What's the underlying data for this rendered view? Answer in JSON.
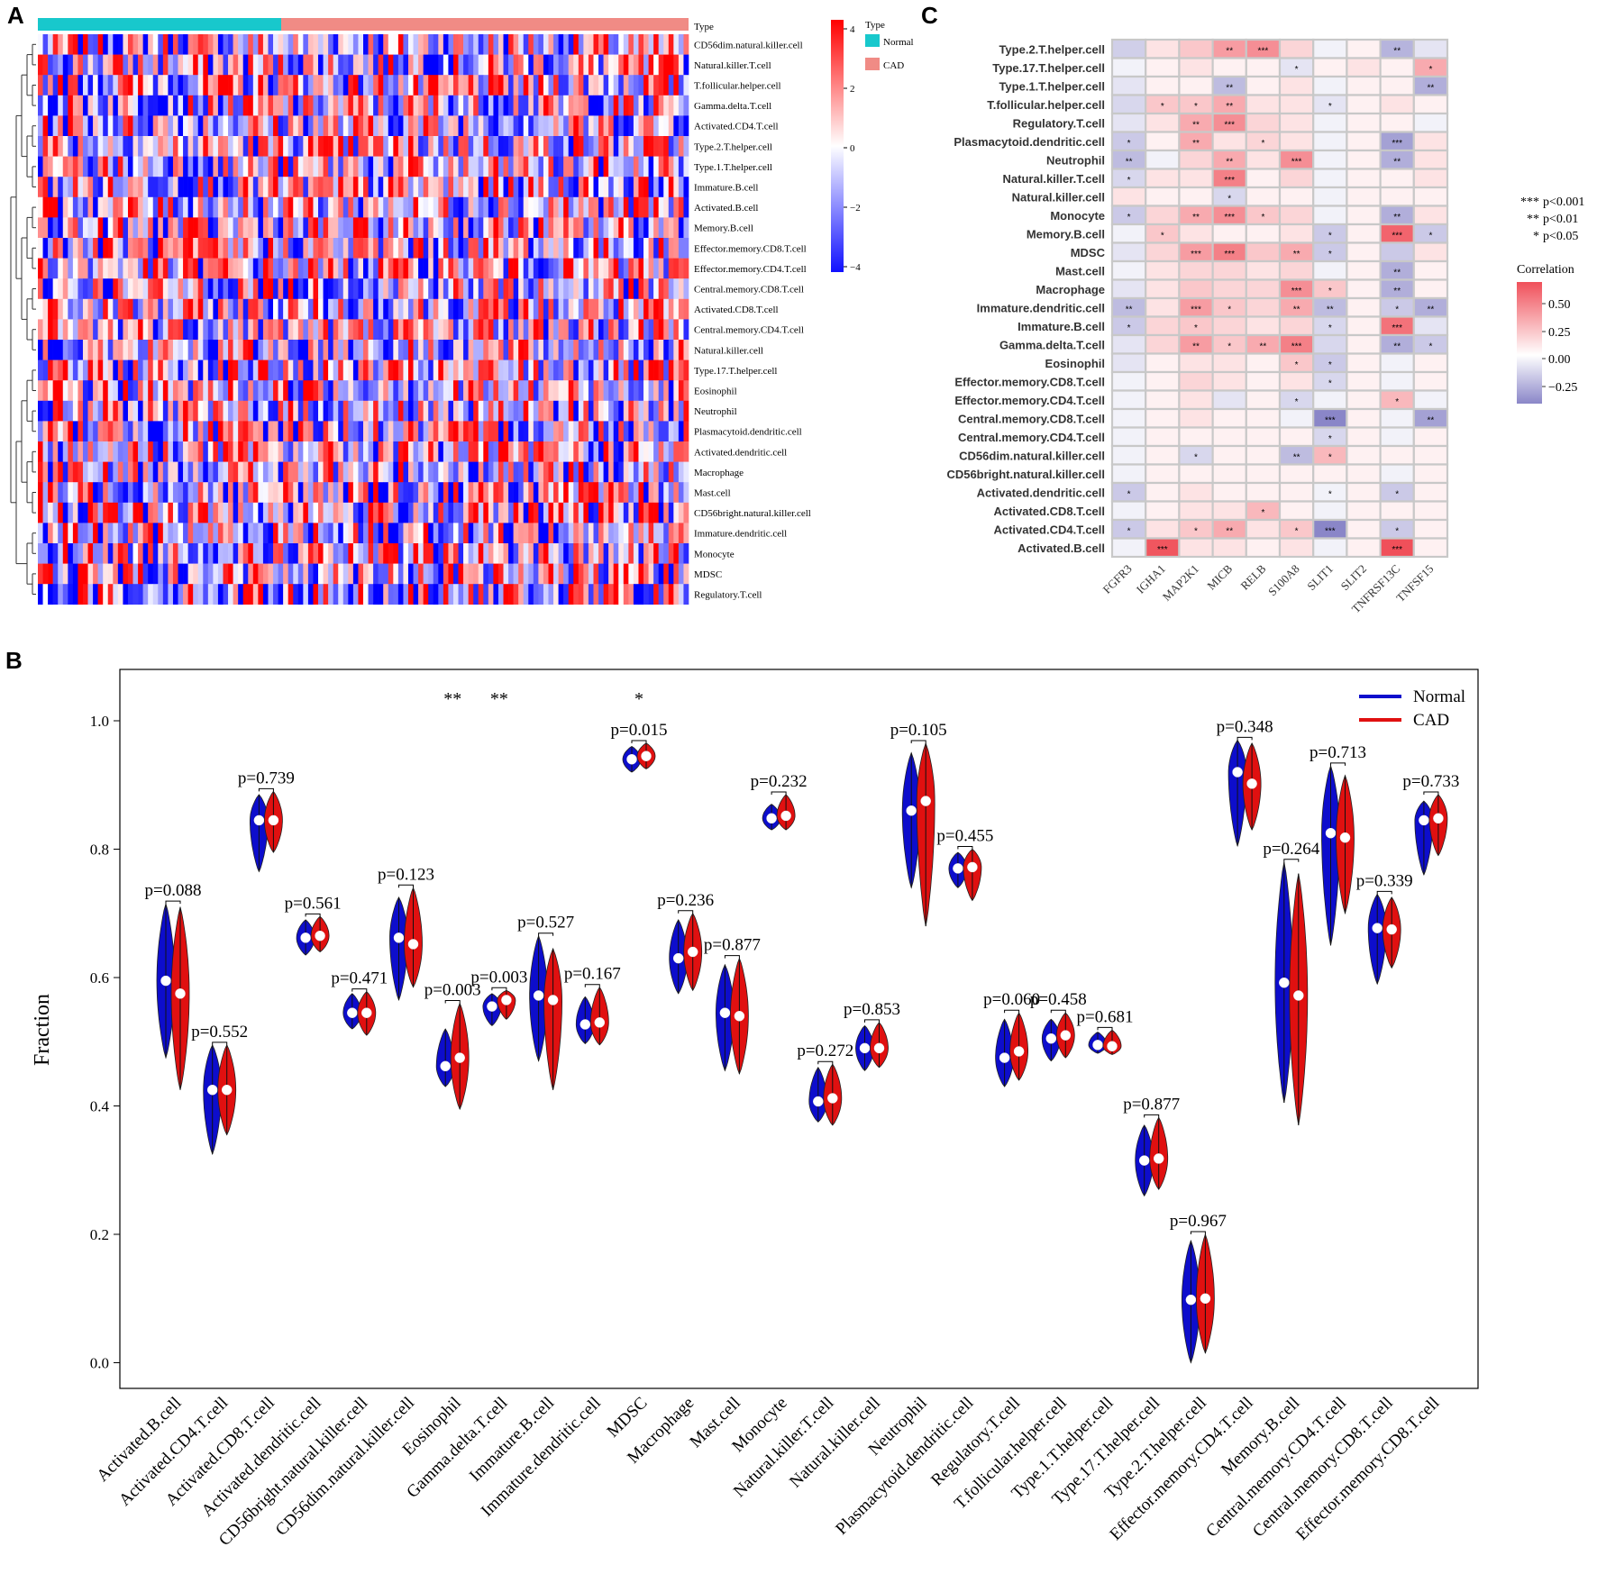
{
  "colors": {
    "normal": "#18c8cc",
    "cad": "#f08b85",
    "heat_low": "#1010ff",
    "heat_mid": "#ffffff",
    "heat_high": "#ff0000",
    "violin_normal": "#0d0dcc",
    "violin_cad": "#e01010",
    "corr_pos": "#f0505a",
    "corr_neg": "#8a86c8"
  },
  "panel_a": {
    "letter": "A",
    "legend_title": "Type",
    "legend_items": [
      "Normal",
      "CAD"
    ],
    "annotation_label": "Type",
    "colorbar_ticks": [
      "4",
      "2",
      "0",
      "−2",
      "−4"
    ],
    "rows": [
      "CD56dim.natural.killer.cell",
      "Natural.killer.T.cell",
      "T.follicular.helper.cell",
      "Gamma.delta.T.cell",
      "Activated.CD4.T.cell",
      "Type.2.T.helper.cell",
      "Type.1.T.helper.cell",
      "Immature.B.cell",
      "Activated.B.cell",
      "Memory.B.cell",
      "Effector.memory.CD8.T.cell",
      "Effector.memory.CD4.T.cell",
      "Central.memory.CD8.T.cell",
      "Activated.CD8.T.cell",
      "Central.memory.CD4.T.cell",
      "Natural.killer.cell",
      "Type.17.T.helper.cell",
      "Eosinophil",
      "Neutrophil",
      "Plasmacytoid.dendritic.cell",
      "Activated.dendritic.cell",
      "Macrophage",
      "Mast.cell",
      "CD56bright.natural.killer.cell",
      "Immature.dendritic.cell",
      "Monocyte",
      "MDSC",
      "Regulatory.T.cell"
    ]
  },
  "panel_c": {
    "letter": "C",
    "rows": [
      "Type.2.T.helper.cell",
      "Type.17.T.helper.cell",
      "Type.1.T.helper.cell",
      "T.follicular.helper.cell",
      "Regulatory.T.cell",
      "Plasmacytoid.dendritic.cell",
      "Neutrophil",
      "Natural.killer.T.cell",
      "Natural.killer.cell",
      "Monocyte",
      "Memory.B.cell",
      "MDSC",
      "Mast.cell",
      "Macrophage",
      "Immature.dendritic.cell",
      "Immature.B.cell",
      "Gamma.delta.T.cell",
      "Eosinophil",
      "Effector.memory.CD8.T.cell",
      "Effector.memory.CD4.T.cell",
      "Central.memory.CD8.T.cell",
      "Central.memory.CD4.T.cell",
      "CD56dim.natural.killer.cell",
      "CD56bright.natural.killer.cell",
      "Activated.dendritic.cell",
      "Activated.CD8.T.cell",
      "Activated.CD4.T.cell",
      "Activated.B.cell"
    ],
    "cols": [
      "FGFR3",
      "IGHA1",
      "MAP2K1",
      "MICB",
      "RELB",
      "S100A8",
      "SLIT1",
      "SLIT2",
      "TNFRSF13C",
      "TNFSF15"
    ],
    "values": [
      [
        -0.18,
        0.1,
        0.2,
        0.35,
        0.4,
        0.15,
        -0.05,
        0.05,
        -0.28,
        -0.1
      ],
      [
        -0.05,
        0.05,
        0.1,
        0.05,
        0.05,
        -0.1,
        0.05,
        0.1,
        0.05,
        0.3
      ],
      [
        -0.1,
        0.05,
        0.05,
        -0.25,
        0.05,
        0.1,
        -0.05,
        0.05,
        0.05,
        -0.3
      ],
      [
        -0.15,
        0.2,
        0.2,
        0.3,
        0.1,
        0.1,
        -0.1,
        0.05,
        0.1,
        0.05
      ],
      [
        -0.1,
        0.1,
        0.3,
        0.4,
        0.15,
        0.1,
        -0.05,
        0.05,
        0.05,
        -0.05
      ],
      [
        -0.2,
        0.05,
        0.3,
        0.1,
        0.15,
        0.1,
        -0.05,
        0.05,
        -0.35,
        0.1
      ],
      [
        -0.25,
        -0.05,
        0.15,
        0.3,
        0.1,
        0.4,
        -0.05,
        0.05,
        -0.3,
        0.1
      ],
      [
        -0.15,
        0.1,
        0.1,
        0.45,
        0.05,
        0.15,
        -0.05,
        0.05,
        0.05,
        0.1
      ],
      [
        0.1,
        0.05,
        0.05,
        -0.15,
        0.05,
        0.05,
        -0.05,
        0.05,
        0.05,
        0.05
      ],
      [
        -0.2,
        0.15,
        0.3,
        0.4,
        0.2,
        0.15,
        -0.05,
        0.05,
        -0.3,
        0.1
      ],
      [
        -0.05,
        0.2,
        0.1,
        0.05,
        0.05,
        0.1,
        -0.2,
        0.05,
        0.55,
        -0.2
      ],
      [
        -0.1,
        0.15,
        0.35,
        0.45,
        0.2,
        0.3,
        -0.2,
        0.05,
        -0.2,
        0.1
      ],
      [
        -0.05,
        0.1,
        0.15,
        0.15,
        0.1,
        0.15,
        -0.05,
        0.05,
        -0.3,
        0.05
      ],
      [
        -0.1,
        0.1,
        0.2,
        0.15,
        0.15,
        0.4,
        0.2,
        0.05,
        -0.3,
        0.05
      ],
      [
        -0.25,
        0.1,
        0.35,
        0.2,
        0.15,
        0.3,
        -0.25,
        0.05,
        -0.2,
        -0.3
      ],
      [
        -0.2,
        0.15,
        0.2,
        0.15,
        0.1,
        0.15,
        -0.15,
        0.05,
        0.5,
        -0.1
      ],
      [
        -0.1,
        0.15,
        0.35,
        0.2,
        0.3,
        0.45,
        -0.15,
        0.05,
        -0.3,
        -0.2
      ],
      [
        -0.1,
        0.05,
        0.1,
        0.1,
        0.05,
        0.2,
        -0.2,
        0.05,
        -0.05,
        0.05
      ],
      [
        -0.05,
        0.05,
        0.15,
        0.1,
        0.05,
        0.1,
        -0.15,
        0.05,
        -0.05,
        0.05
      ],
      [
        -0.05,
        0.05,
        0.1,
        -0.1,
        0.05,
        -0.15,
        -0.05,
        0.05,
        0.25,
        -0.05
      ],
      [
        -0.05,
        0.05,
        0.1,
        0.05,
        0.05,
        -0.05,
        -0.45,
        0.05,
        -0.05,
        -0.35
      ],
      [
        -0.05,
        0.05,
        0.05,
        0.05,
        0.05,
        0.05,
        -0.15,
        0.05,
        -0.05,
        0.05
      ],
      [
        -0.05,
        0.05,
        -0.15,
        0.05,
        0.05,
        -0.25,
        0.25,
        0.05,
        0.05,
        0.05
      ],
      [
        -0.05,
        0.05,
        0.05,
        0.05,
        0.05,
        0.05,
        0.05,
        0.05,
        -0.05,
        0.05
      ],
      [
        -0.2,
        0.05,
        0.1,
        0.05,
        0.05,
        0.05,
        -0.05,
        0.05,
        -0.2,
        0.05
      ],
      [
        -0.05,
        0.05,
        0.1,
        0.1,
        0.25,
        0.05,
        -0.05,
        0.05,
        0.05,
        0.05
      ],
      [
        -0.2,
        0.1,
        0.2,
        0.3,
        0.1,
        0.2,
        -0.45,
        0.05,
        -0.2,
        0.05
      ],
      [
        -0.05,
        0.6,
        0.1,
        0.1,
        0.05,
        0.1,
        -0.05,
        0.05,
        0.62,
        0.05
      ]
    ],
    "stars": [
      [
        "",
        "",
        "",
        "**",
        "***",
        "",
        "",
        "",
        "**",
        ""
      ],
      [
        "",
        "",
        "",
        "",
        "",
        "*",
        "",
        "",
        "",
        "*"
      ],
      [
        "",
        "",
        "",
        "**",
        "",
        "",
        "",
        "",
        "",
        "**"
      ],
      [
        "",
        "*",
        "*",
        "**",
        "",
        "",
        "*",
        "",
        "",
        ""
      ],
      [
        "",
        "",
        "**",
        "***",
        "",
        "",
        "",
        "",
        "",
        ""
      ],
      [
        "*",
        "",
        "**",
        "",
        "*",
        "",
        "",
        "",
        "***",
        ""
      ],
      [
        "**",
        "",
        "",
        "**",
        "",
        "***",
        "",
        "",
        "**",
        ""
      ],
      [
        "*",
        "",
        "",
        "***",
        "",
        "",
        "",
        "",
        "",
        ""
      ],
      [
        "",
        "",
        "",
        "*",
        "",
        "",
        "",
        "",
        "",
        ""
      ],
      [
        "*",
        "",
        "**",
        "***",
        "*",
        "",
        "",
        "",
        "**",
        ""
      ],
      [
        "",
        "*",
        "",
        "",
        "",
        "",
        "*",
        "",
        "***",
        "*"
      ],
      [
        "",
        "",
        "***",
        "***",
        "",
        "**",
        "*",
        "",
        "",
        ""
      ],
      [
        "",
        "",
        "",
        "",
        "",
        "",
        "",
        "",
        "**",
        ""
      ],
      [
        "",
        "",
        "",
        "",
        "",
        "***",
        "*",
        "",
        "**",
        ""
      ],
      [
        "**",
        "",
        "***",
        "*",
        "",
        "**",
        "**",
        "",
        "*",
        "**"
      ],
      [
        "*",
        "",
        "*",
        "",
        "",
        "",
        "*",
        "",
        "***",
        ""
      ],
      [
        "",
        "",
        "**",
        "*",
        "**",
        "***",
        "",
        "",
        "**",
        "*"
      ],
      [
        "",
        "",
        "",
        "",
        "",
        "*",
        "*",
        "",
        "",
        ""
      ],
      [
        "",
        "",
        "",
        "",
        "",
        "",
        "*",
        "",
        "",
        ""
      ],
      [
        "",
        "",
        "",
        "",
        "",
        "*",
        "",
        "",
        "*",
        ""
      ],
      [
        "",
        "",
        "",
        "",
        "",
        "",
        "***",
        "",
        "",
        "**"
      ],
      [
        "",
        "",
        "",
        "",
        "",
        "",
        "*",
        "",
        "",
        ""
      ],
      [
        "",
        "",
        "*",
        "",
        "",
        "**",
        "*",
        "",
        "",
        ""
      ],
      [
        "",
        "",
        "",
        "",
        "",
        "",
        "",
        "",
        "",
        ""
      ],
      [
        "*",
        "",
        "",
        "",
        "",
        "",
        "*",
        "",
        "*",
        ""
      ],
      [
        "",
        "",
        "",
        "",
        "*",
        "",
        "",
        "",
        "",
        ""
      ],
      [
        "*",
        "",
        "*",
        "**",
        "",
        "*",
        "***",
        "",
        "*",
        ""
      ],
      [
        "",
        "***",
        "",
        "",
        "",
        "",
        "",
        "",
        "***",
        ""
      ]
    ],
    "sig_legend": [
      {
        "stars": "***",
        "label": "p<0.001"
      },
      {
        "stars": "**",
        "label": "p<0.01"
      },
      {
        "stars": "*",
        "label": "p<0.05"
      }
    ],
    "colorbar_title": "Correlation",
    "colorbar_ticks": [
      "0.50",
      "0.25",
      "0.00",
      "−0.25"
    ]
  },
  "chart_data": {
    "type": "violin",
    "title": "",
    "ylabel": "Fraction",
    "xlabel": "",
    "ylim": [
      -0.04,
      1.08
    ],
    "yticks": [
      "0.0",
      "0.2",
      "0.4",
      "0.6",
      "0.8",
      "1.0"
    ],
    "legend": [
      "Normal",
      "CAD"
    ],
    "letter": "B",
    "categories": [
      "Activated.B.cell",
      "Activated.CD4.T.cell",
      "Activated.CD8.T.cell",
      "Activated.dendritic.cell",
      "CD56bright.natural.killer.cell",
      "CD56dim.natural.killer.cell",
      "Eosinophil",
      "Gamma.delta.T.cell",
      "Immature.B.cell",
      "Immature.dendritic.cell",
      "MDSC",
      "Macrophage",
      "Mast.cell",
      "Monocyte",
      "Natural.killer.T.cell",
      "Natural.killer.cell",
      "Neutrophil",
      "Plasmacytoid.dendritic.cell",
      "Regulatory.T.cell",
      "T.follicular.helper.cell",
      "Type.1.T.helper.cell",
      "Type.17.T.helper.cell",
      "Type.2.T.helper.cell",
      "Effector.memory.CD4.T.cell",
      "Memory.B.cell",
      "Central.memory.CD4.T.cell",
      "Central.memory.CD8.T.cell",
      "Effector.memory.CD8.T.cell"
    ],
    "p_values": [
      "p=0.088",
      "p=0.552",
      "p=0.739",
      "p=0.561",
      "p=0.471",
      "p=0.123",
      "p=0.003",
      "p=0.003",
      "p=0.527",
      "p=0.167",
      "p=0.015",
      "p=0.236",
      "p=0.877",
      "p=0.232",
      "p=0.272",
      "p=0.853",
      "p=0.105",
      "p=0.455",
      "p=0.060",
      "p=0.458",
      "p=0.681",
      "p=0.877",
      "p=0.967",
      "p=0.348",
      "p=0.264",
      "p=0.713",
      "p=0.339",
      "p=0.733"
    ],
    "significance": [
      "",
      "",
      "",
      "",
      "",
      "",
      "**",
      "**",
      "",
      "",
      "*",
      "",
      "",
      "",
      "",
      "",
      "",
      "",
      "",
      "",
      "",
      "",
      "",
      "",
      "",
      "",
      "",
      ""
    ],
    "series": [
      {
        "name": "Normal",
        "median": [
          0.595,
          0.425,
          0.845,
          0.662,
          0.545,
          0.662,
          0.462,
          0.555,
          0.572,
          0.527,
          0.94,
          0.63,
          0.545,
          0.848,
          0.407,
          0.49,
          0.86,
          0.77,
          0.475,
          0.505,
          0.495,
          0.315,
          0.098,
          0.92,
          0.592,
          0.825,
          0.677,
          0.845
        ],
        "min": [
          0.475,
          0.325,
          0.765,
          0.635,
          0.52,
          0.565,
          0.43,
          0.525,
          0.47,
          0.497,
          0.92,
          0.575,
          0.455,
          0.83,
          0.375,
          0.455,
          0.74,
          0.74,
          0.43,
          0.47,
          0.482,
          0.26,
          0.0,
          0.805,
          0.405,
          0.65,
          0.59,
          0.76
        ],
        "max": [
          0.715,
          0.495,
          0.885,
          0.69,
          0.575,
          0.725,
          0.52,
          0.575,
          0.665,
          0.57,
          0.96,
          0.69,
          0.62,
          0.87,
          0.46,
          0.525,
          0.95,
          0.795,
          0.535,
          0.535,
          0.515,
          0.37,
          0.19,
          0.97,
          0.78,
          0.93,
          0.73,
          0.875
        ]
      },
      {
        "name": "CAD",
        "median": [
          0.575,
          0.425,
          0.845,
          0.665,
          0.545,
          0.652,
          0.475,
          0.565,
          0.565,
          0.53,
          0.945,
          0.64,
          0.54,
          0.852,
          0.412,
          0.49,
          0.875,
          0.772,
          0.485,
          0.51,
          0.493,
          0.318,
          0.1,
          0.902,
          0.572,
          0.818,
          0.675,
          0.848
        ],
        "min": [
          0.425,
          0.355,
          0.795,
          0.64,
          0.51,
          0.585,
          0.395,
          0.535,
          0.425,
          0.495,
          0.925,
          0.58,
          0.45,
          0.83,
          0.37,
          0.46,
          0.68,
          0.72,
          0.44,
          0.475,
          0.48,
          0.27,
          0.015,
          0.83,
          0.37,
          0.7,
          0.615,
          0.79
        ],
        "max": [
          0.71,
          0.495,
          0.89,
          0.695,
          0.578,
          0.74,
          0.56,
          0.58,
          0.645,
          0.585,
          0.965,
          0.7,
          0.63,
          0.885,
          0.465,
          0.53,
          0.965,
          0.8,
          0.545,
          0.545,
          0.518,
          0.382,
          0.2,
          0.965,
          0.762,
          0.915,
          0.725,
          0.885
        ]
      }
    ]
  }
}
